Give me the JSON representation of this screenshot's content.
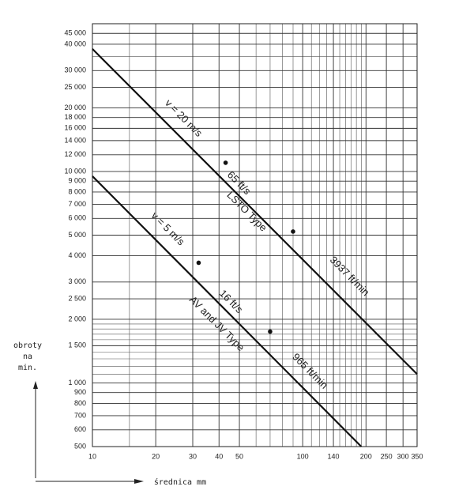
{
  "chart_data": {
    "type": "line",
    "x_label": "średnica mm",
    "y_label": [
      "obroty",
      "na",
      "min."
    ],
    "xlim": [
      10,
      350
    ],
    "ylim": [
      500,
      50000
    ],
    "log_x": true,
    "log_y": true,
    "grid": true,
    "xticks": [
      10,
      20,
      30,
      40,
      50,
      100,
      140,
      200,
      250,
      300,
      350
    ],
    "yticks": [
      500,
      600,
      700,
      800,
      900,
      {
        "value": 1000,
        "label": "1 000"
      },
      {
        "value": 1500,
        "label": "1 500"
      },
      {
        "value": 2000,
        "label": "2 000"
      },
      {
        "value": 2500,
        "label": "2 500"
      },
      {
        "value": 3000,
        "label": "3 000"
      },
      {
        "value": 4000,
        "label": "4 000"
      },
      {
        "value": 5000,
        "label": "5 000"
      },
      {
        "value": 6000,
        "label": "6 000"
      },
      {
        "value": 7000,
        "label": "7 000"
      },
      {
        "value": 8000,
        "label": "8 000"
      },
      {
        "value": 9000,
        "label": "9 000"
      },
      {
        "value": 10000,
        "label": "10 000"
      },
      {
        "value": 12000,
        "label": "12 000"
      },
      {
        "value": 14000,
        "label": "14 000"
      },
      {
        "value": 16000,
        "label": "16 000"
      },
      {
        "value": 18000,
        "label": "18 000"
      },
      {
        "value": 20000,
        "label": "20 000"
      },
      {
        "value": 25000,
        "label": "25 000"
      },
      {
        "value": 30000,
        "label": "30 000"
      },
      {
        "value": 40000,
        "label": "40 000"
      },
      {
        "value": 45000,
        "label": "45 000"
      }
    ],
    "x_minor_grid": [
      15,
      60,
      70,
      80,
      90,
      110,
      120,
      130,
      150,
      160,
      170,
      180,
      190
    ],
    "y_minor_grid": [
      1100,
      1200,
      1300,
      1400,
      1600,
      1700,
      1800,
      1900,
      35000
    ],
    "series": [
      {
        "x": [
          10,
          350
        ],
        "values": [
          38000,
          1100
        ],
        "color": "#111"
      },
      {
        "x": [
          10,
          190
        ],
        "values": [
          9500,
          500
        ],
        "color": "#111"
      }
    ],
    "points": {
      "x": [
        43,
        90,
        32,
        70
      ],
      "values": [
        11000,
        5200,
        3700,
        1750
      ],
      "color": "#111"
    },
    "annotations": [
      "v = 20 m/s",
      "65 ft/s",
      "LSTO Type",
      "3937 ft/min",
      "v = 5 m/s",
      "16 ft/s",
      "AV and JV Type",
      "965 ft/min"
    ]
  }
}
